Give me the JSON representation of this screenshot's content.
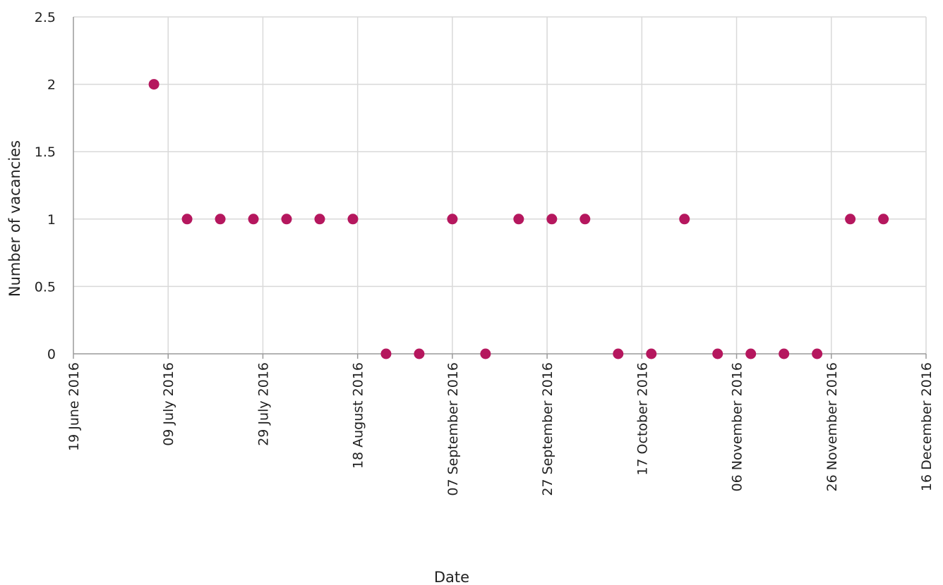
{
  "chart_data": {
    "type": "scatter",
    "title": "",
    "xlabel": "Date",
    "ylabel": "Number of vacancies",
    "x_ticks": [
      "19 June 2016",
      "09 July 2016",
      "29 July 2016",
      "18 August 2016",
      "07 September 2016",
      "27 September 2016",
      "17 October 2016",
      "06 November 2016",
      "26 November 2016",
      "16 December 2016"
    ],
    "y_ticks": [
      "0",
      "0.5",
      "1",
      "1.5",
      "2",
      "2.5"
    ],
    "xlim": [
      "2016-06-19",
      "2016-12-16"
    ],
    "ylim": [
      0,
      2.5
    ],
    "grid": true,
    "marker_color": "#b5175e",
    "grid_color": "#d9d9d9",
    "points": [
      {
        "x": "2016-07-06",
        "y": 2
      },
      {
        "x": "2016-07-13",
        "y": 1
      },
      {
        "x": "2016-07-20",
        "y": 1
      },
      {
        "x": "2016-07-27",
        "y": 1
      },
      {
        "x": "2016-08-03",
        "y": 1
      },
      {
        "x": "2016-08-10",
        "y": 1
      },
      {
        "x": "2016-08-17",
        "y": 1
      },
      {
        "x": "2016-08-24",
        "y": 0
      },
      {
        "x": "2016-08-31",
        "y": 0
      },
      {
        "x": "2016-09-07",
        "y": 1
      },
      {
        "x": "2016-09-14",
        "y": 0
      },
      {
        "x": "2016-09-21",
        "y": 1
      },
      {
        "x": "2016-09-28",
        "y": 1
      },
      {
        "x": "2016-10-05",
        "y": 1
      },
      {
        "x": "2016-10-12",
        "y": 0
      },
      {
        "x": "2016-10-19",
        "y": 0
      },
      {
        "x": "2016-10-26",
        "y": 1
      },
      {
        "x": "2016-11-02",
        "y": 0
      },
      {
        "x": "2016-11-09",
        "y": 0
      },
      {
        "x": "2016-11-16",
        "y": 0
      },
      {
        "x": "2016-11-23",
        "y": 0
      },
      {
        "x": "2016-11-30",
        "y": 1
      },
      {
        "x": "2016-12-07",
        "y": 1
      }
    ]
  }
}
